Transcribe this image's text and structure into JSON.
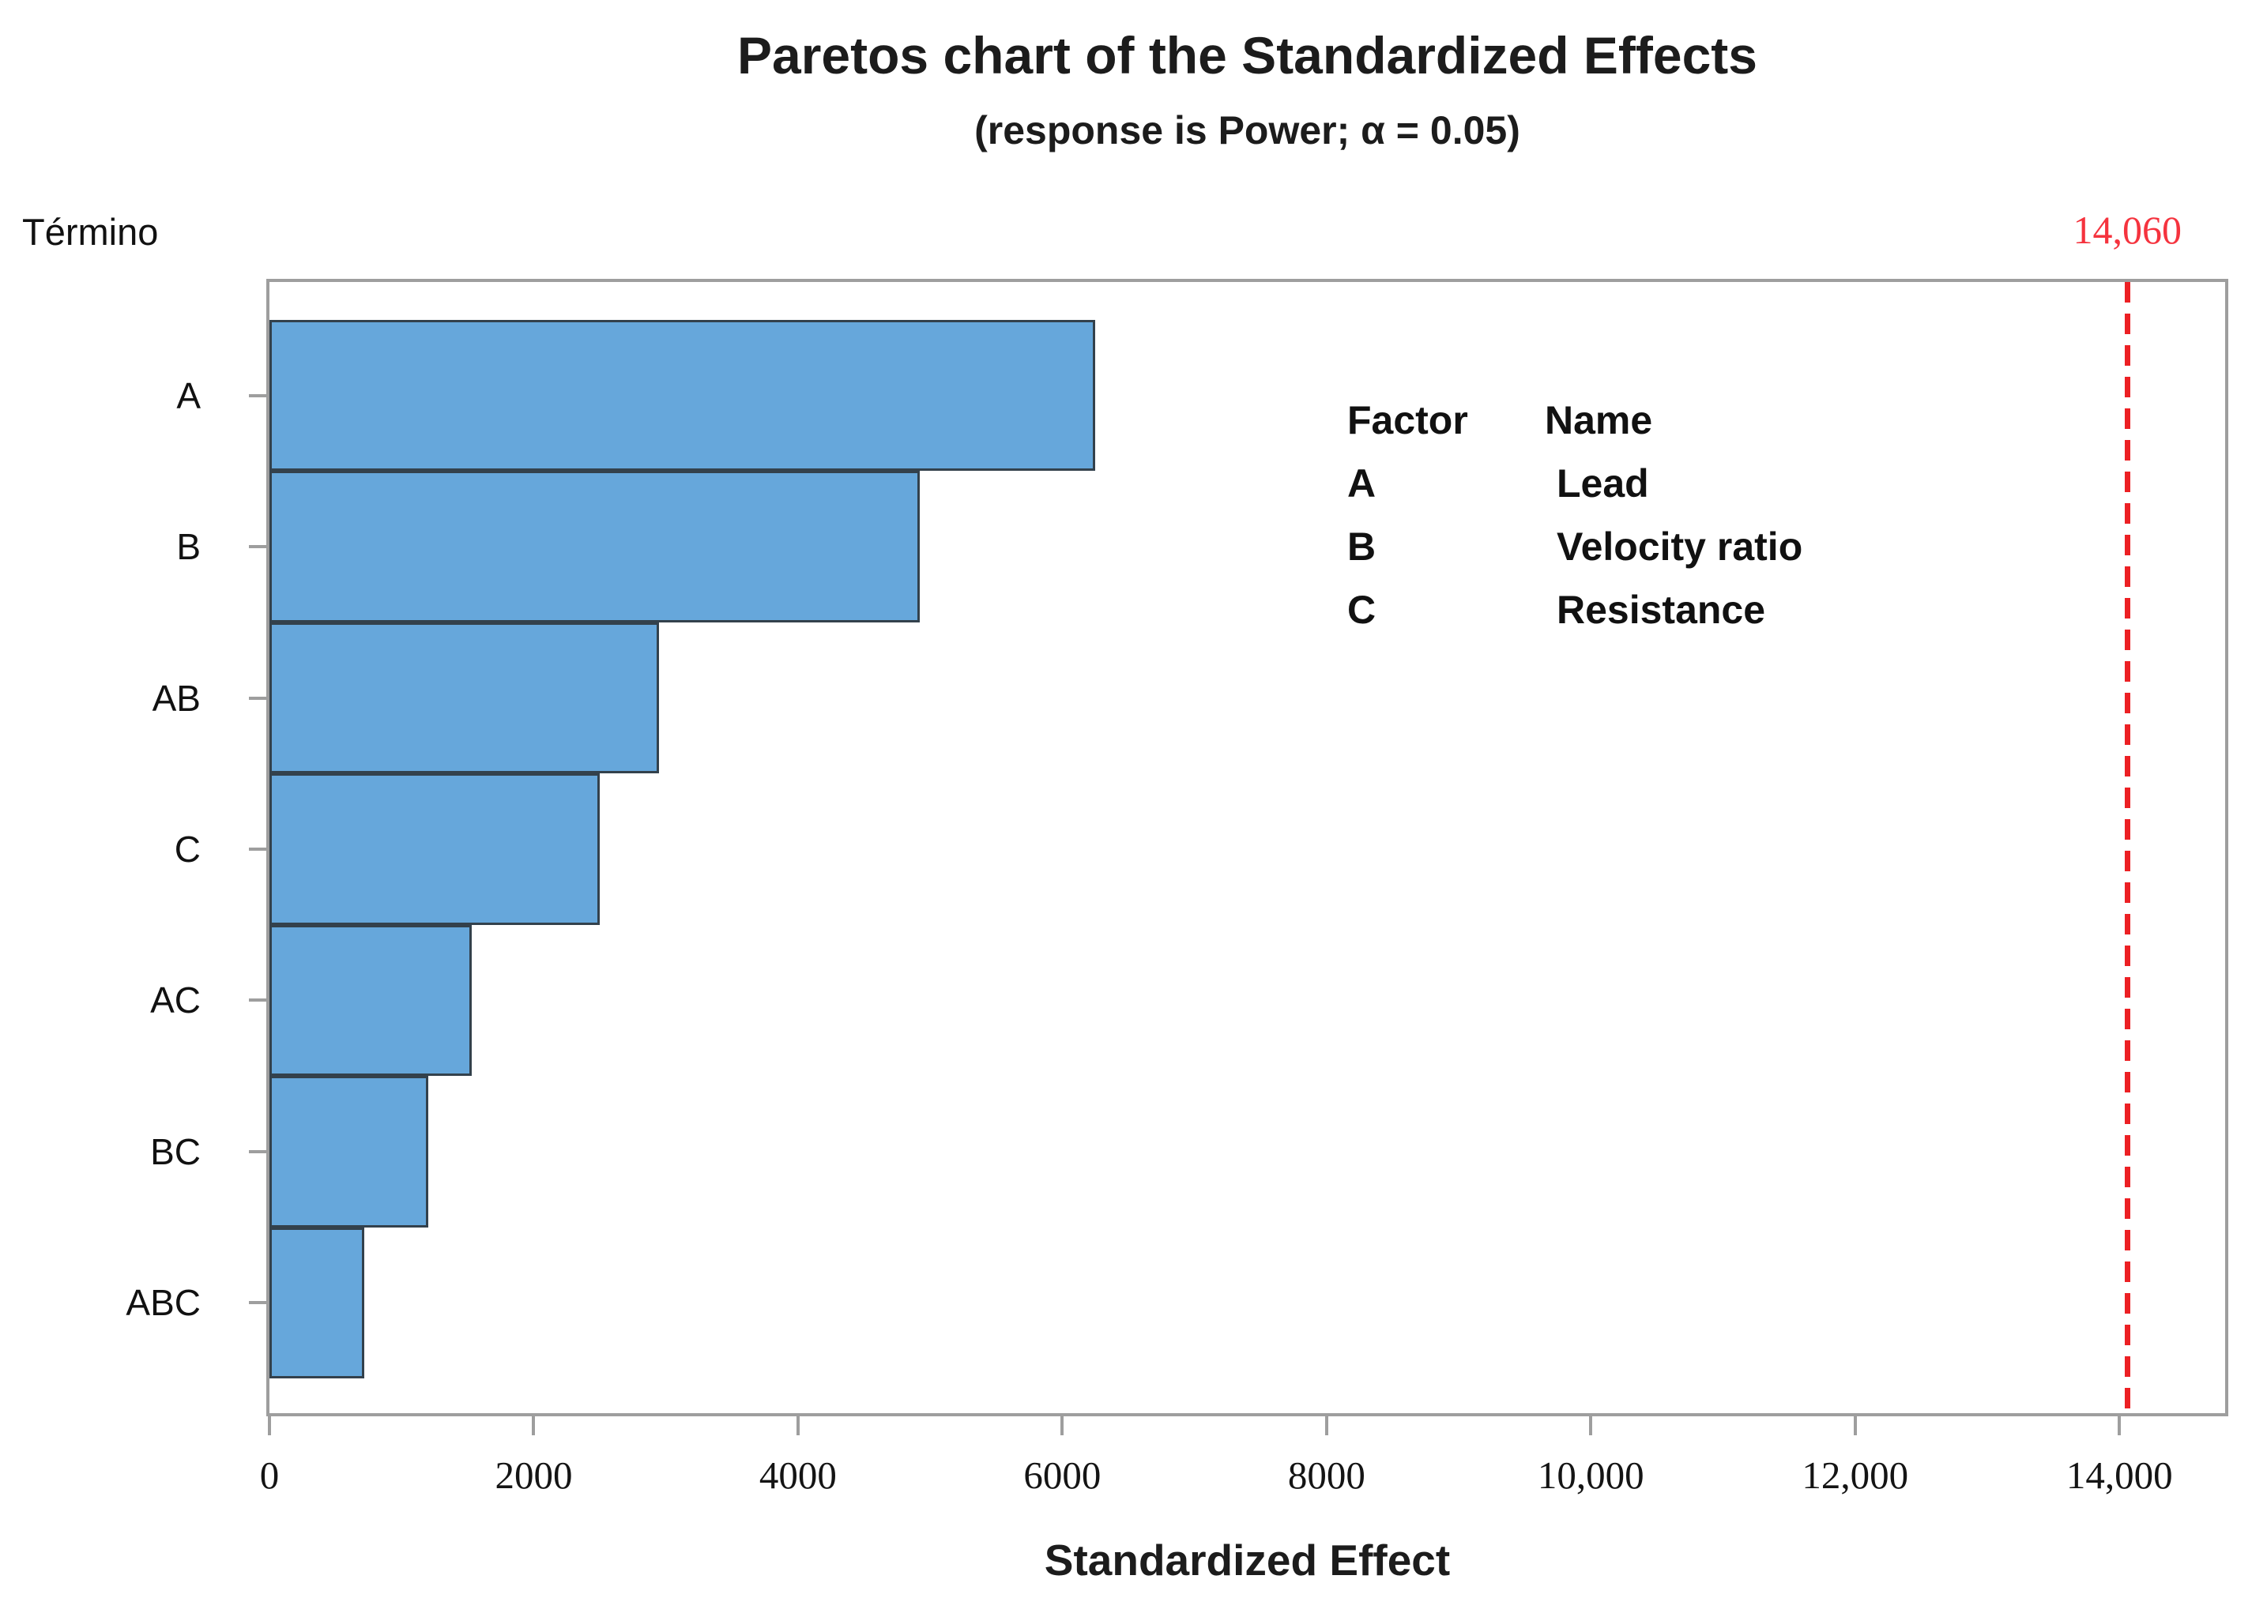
{
  "chart_data": {
    "type": "bar",
    "orientation": "horizontal",
    "title": "Paretos chart of the Standardized Effects",
    "subtitle": "(response is Power; α = 0.05)",
    "xlabel": "Standardized Effect",
    "ylabel": "Término",
    "categories": [
      "A",
      "B",
      "AB",
      "C",
      "AC",
      "BC",
      "ABC"
    ],
    "values": [
      6250,
      4920,
      2950,
      2500,
      1530,
      1200,
      715
    ],
    "xlim": [
      0,
      14800
    ],
    "x_ticks": [
      {
        "value": 0,
        "label": "0"
      },
      {
        "value": 2000,
        "label": "2000"
      },
      {
        "value": 4000,
        "label": "4000"
      },
      {
        "value": 6000,
        "label": "6000"
      },
      {
        "value": 8000,
        "label": "8000"
      },
      {
        "value": 10000,
        "label": "10,000"
      },
      {
        "value": 12000,
        "label": "12,000"
      },
      {
        "value": 14000,
        "label": "14,000"
      }
    ],
    "reference_line": {
      "value": 14060,
      "label": "14,060"
    },
    "legend": {
      "col_headers": [
        "Factor",
        "Name"
      ],
      "rows": [
        {
          "factor": "A",
          "name": "Lead"
        },
        {
          "factor": "B",
          "name": "Velocity ratio"
        },
        {
          "factor": "C",
          "name": "Resistance"
        }
      ]
    },
    "grid": false,
    "legend_position": "inside-upper-right",
    "colors": {
      "bar_fill": "#66a7db",
      "bar_border": "#33414c",
      "axis": "#9e9e9e",
      "reference_line": "#ec2024",
      "reference_label": "#f5333e",
      "text": "#111111"
    }
  }
}
